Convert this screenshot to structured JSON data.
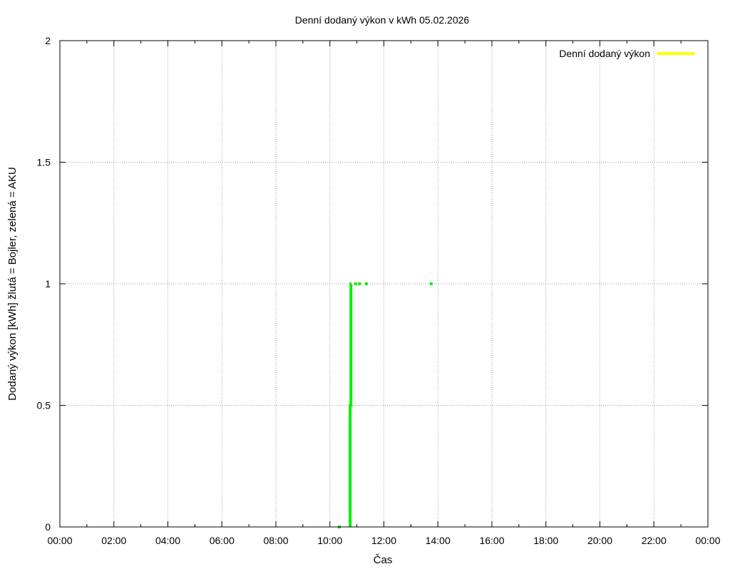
{
  "chart_data": {
    "type": "line",
    "title": "Denní dodaný výkon v kWh 05.02.2026",
    "xlabel": "Čas",
    "ylabel": "Dodaný výkon [kWh]  žlutá = Bojler, zelená = AKU",
    "xlim": [
      0,
      24
    ],
    "ylim": [
      0,
      2
    ],
    "grid": true,
    "legend_position": "top-right",
    "x_ticks": [
      {
        "value": 0,
        "label": "00:00"
      },
      {
        "value": 2,
        "label": "02:00"
      },
      {
        "value": 4,
        "label": "04:00"
      },
      {
        "value": 6,
        "label": "06:00"
      },
      {
        "value": 8,
        "label": "08:00"
      },
      {
        "value": 10,
        "label": "10:00"
      },
      {
        "value": 12,
        "label": "12:00"
      },
      {
        "value": 14,
        "label": "14:00"
      },
      {
        "value": 16,
        "label": "16:00"
      },
      {
        "value": 18,
        "label": "18:00"
      },
      {
        "value": 20,
        "label": "20:00"
      },
      {
        "value": 22,
        "label": "22:00"
      },
      {
        "value": 24,
        "label": "00:00"
      }
    ],
    "y_ticks": [
      {
        "value": 0,
        "label": "0"
      },
      {
        "value": 0.5,
        "label": "0.5"
      },
      {
        "value": 1,
        "label": "1"
      },
      {
        "value": 1.5,
        "label": "1.5"
      },
      {
        "value": 2,
        "label": "2"
      }
    ],
    "series": [
      {
        "name": "Denní dodaný výkon",
        "color": "#ffff00",
        "style": "line",
        "points": []
      },
      {
        "name": "",
        "color": "#00ee00",
        "style": "line",
        "points": [
          [
            10.75,
            0
          ],
          [
            10.75,
            0.5
          ],
          [
            10.78,
            0.5
          ],
          [
            10.78,
            1.0
          ],
          [
            10.8,
            1.0
          ]
        ]
      },
      {
        "name": "",
        "color": "#00ee00",
        "style": "points",
        "points": [
          [
            10.35,
            0
          ],
          [
            10.95,
            1.0
          ],
          [
            11.1,
            1.0
          ],
          [
            11.35,
            1.0
          ],
          [
            13.75,
            1.0
          ]
        ]
      }
    ]
  }
}
